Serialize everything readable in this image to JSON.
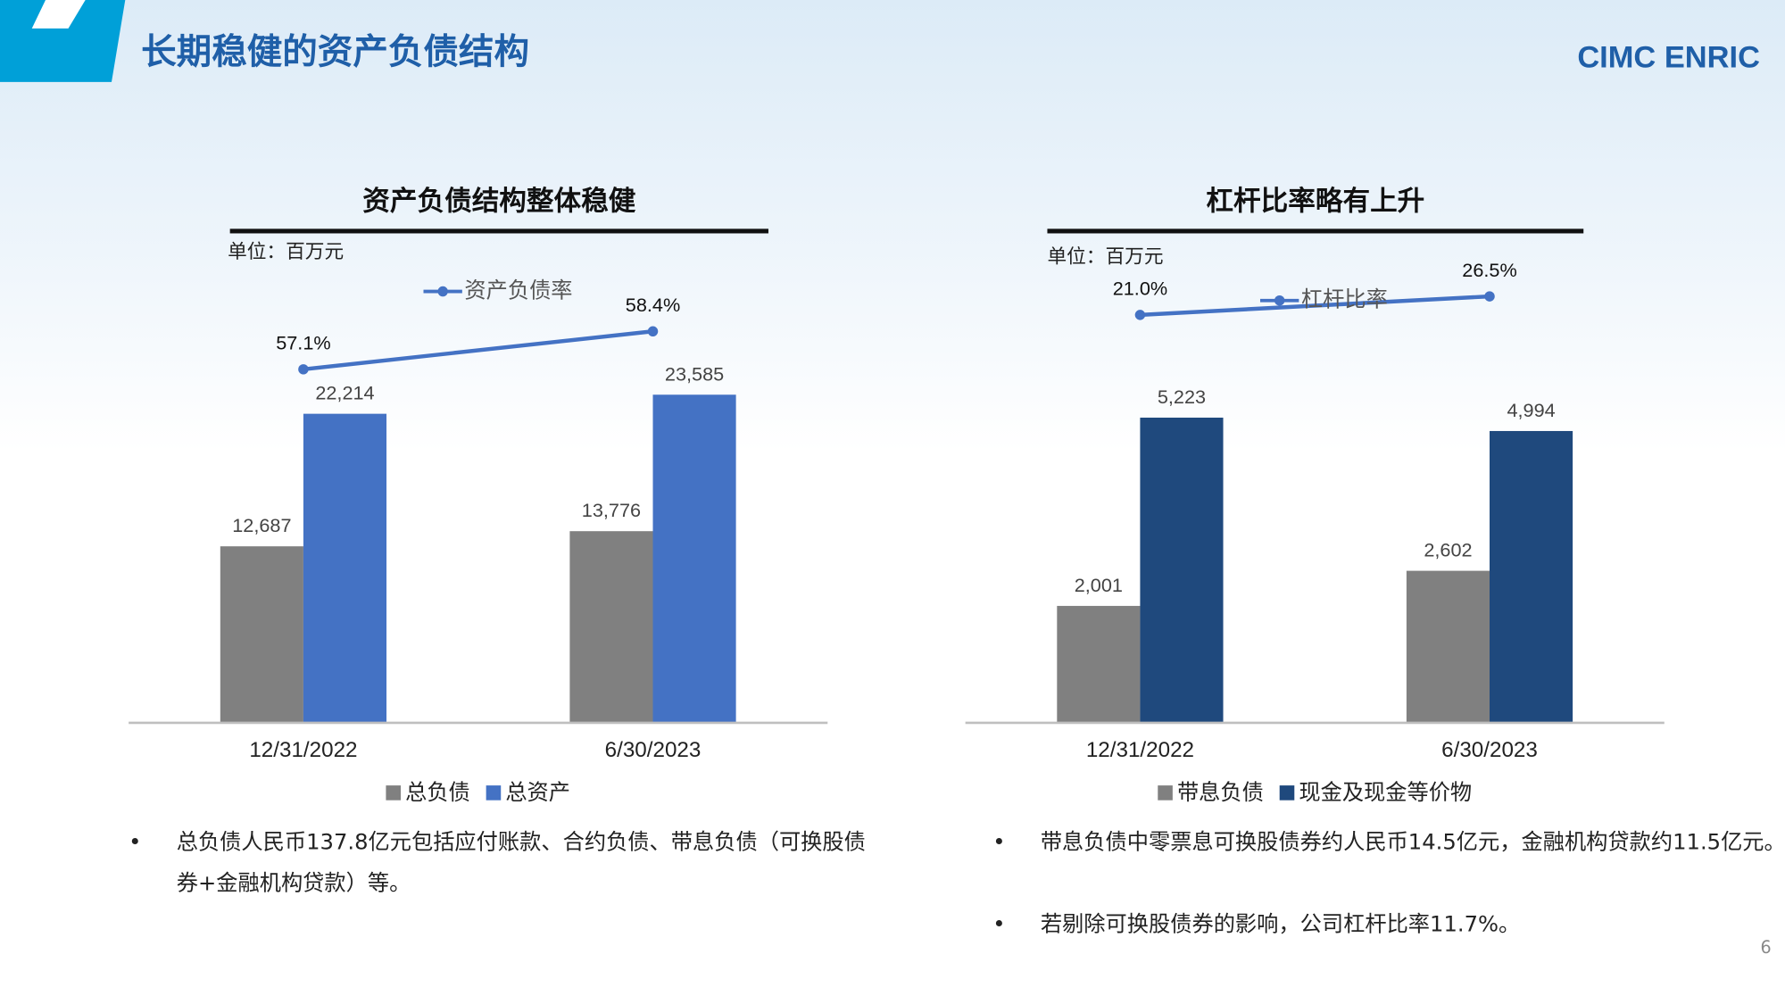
{
  "page": {
    "title": "长期稳健的资产负债结构",
    "logo": "CIMC ENRIC",
    "page_number": "6"
  },
  "chart_data": [
    {
      "type": "bar",
      "title": "资产负债结构整体稳健",
      "unit": "单位：百万元",
      "categories": [
        "12/31/2022",
        "6/30/2023"
      ],
      "ylim": [
        0,
        31500
      ],
      "y2lim": [
        45,
        60
      ],
      "series": [
        {
          "name": "总负债",
          "color": "#808080",
          "values": [
            12687,
            13776
          ],
          "value_labels": [
            "12,687",
            "13,776"
          ]
        },
        {
          "name": "总资产",
          "color": "#4472c4",
          "values": [
            22214,
            23585
          ],
          "value_labels": [
            "22,214",
            "23,585"
          ]
        },
        {
          "name": "资产负债率",
          "type": "line",
          "axis": "y2",
          "color": "#4472c4",
          "values": [
            57.1,
            58.4
          ],
          "value_labels": [
            "57.1%",
            "58.4%"
          ]
        }
      ],
      "notes": [
        "总负债人民币137.8亿元包括应付账款、合约负债、带息负债（可换股债券+金融机构贷款）等。"
      ]
    },
    {
      "type": "bar",
      "title": "杠杆比率略有上升",
      "unit": "单位：百万元",
      "categories": [
        "12/31/2022",
        "6/30/2023"
      ],
      "ylim": [
        0,
        7500
      ],
      "y2lim": [
        -100,
        30
      ],
      "series": [
        {
          "name": "带息负债",
          "color": "#808080",
          "values": [
            2001,
            2602
          ],
          "value_labels": [
            "2,001",
            "2,602"
          ]
        },
        {
          "name": "现金及现金等价物",
          "color": "#1f497d",
          "values": [
            5223,
            4994
          ],
          "value_labels": [
            "5,223",
            "4,994"
          ]
        },
        {
          "name": "杠杆比率",
          "type": "line",
          "axis": "y2",
          "color": "#4472c4",
          "values": [
            21.0,
            26.5
          ],
          "value_labels": [
            "21.0%",
            "26.5%"
          ]
        }
      ],
      "notes": [
        "带息负债中零票息可换股债券约人民币14.5亿元，金融机构贷款约11.5亿元。",
        "若剔除可换股债券的影响，公司杠杆比率11.7%。"
      ]
    }
  ]
}
